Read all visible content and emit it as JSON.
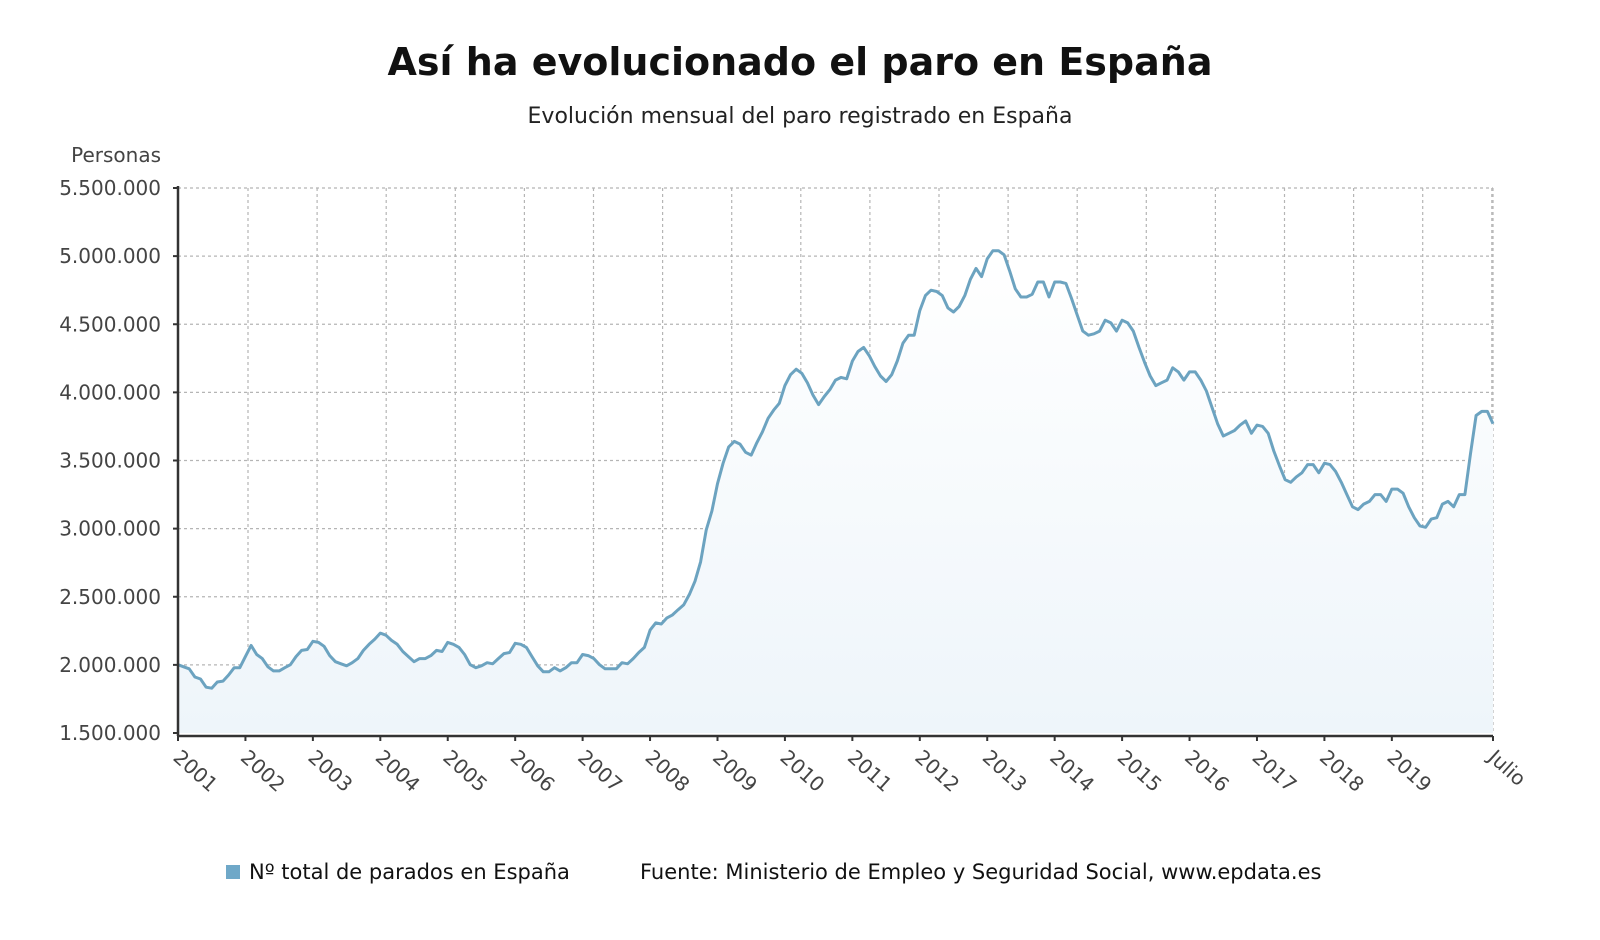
{
  "title": "Así ha evolucionado el paro en España",
  "subtitle": "Evolución mensual del paro registrado en España",
  "legend": {
    "label": "Nº total de parados en España",
    "color": "#6fa8c8"
  },
  "source": "Fuente: Ministerio de Empleo y Seguridad Social, www.epdata.es",
  "chart_data": {
    "type": "area",
    "title": "Así ha evolucionado el paro en España",
    "subtitle": "Evolución mensual del paro registrado en España",
    "ylabel": "Personas",
    "xlabel": "",
    "ylim": [
      1500000,
      5500000
    ],
    "yticks": [
      "1.500.000",
      "2.000.000",
      "2.500.000",
      "3.000.000",
      "3.500.000",
      "4.000.000",
      "4.500.000",
      "5.000.000",
      "5.500.000"
    ],
    "ytick_values": [
      1500000,
      2000000,
      2500000,
      3000000,
      3500000,
      4000000,
      4500000,
      5000000,
      5500000
    ],
    "xticks": [
      "2001",
      "2002",
      "2003",
      "2004",
      "2005",
      "2006",
      "2007",
      "2008",
      "2009",
      "2010",
      "2011",
      "2012",
      "2013",
      "2014",
      "2015",
      "2016",
      "2017",
      "2018",
      "2019",
      "Julio"
    ],
    "x_range": [
      "Enero 2001",
      "Julio 2020"
    ],
    "grid": true,
    "legend_position": "bottom-left",
    "line_color": "#6ca3c0",
    "fill_color": "#eef5fa",
    "series": [
      {
        "name": "Nº total de parados en España",
        "monthly_values_by_year": {
          "2001": [
            2001000,
            1986000,
            1971000,
            1911000,
            1896000,
            1836000,
            1829000,
            1874000,
            1881000,
            1926000,
            1979000,
            1979000
          ],
          "2002": [
            2061000,
            2143000,
            2076000,
            2046000,
            1986000,
            1956000,
            1956000,
            1979000,
            2001000,
            2061000,
            2106000,
            2113000
          ],
          "2003": [
            2173000,
            2165000,
            2136000,
            2068000,
            2023000,
            2008000,
            1993000,
            2016000,
            2046000,
            2106000,
            2151000,
            2188000
          ],
          "2004": [
            2233000,
            2218000,
            2180000,
            2151000,
            2098000,
            2061000,
            2023000,
            2046000,
            2046000,
            2068000,
            2106000,
            2098000
          ],
          "2005": [
            2165000,
            2151000,
            2128000,
            2076000,
            2001000,
            1979000,
            1993000,
            2016000,
            2008000,
            2046000,
            2083000,
            2091000
          ],
          "2006": [
            2158000,
            2151000,
            2128000,
            2061000,
            1993000,
            1949000,
            1949000,
            1979000,
            1956000,
            1979000,
            2016000,
            2016000
          ],
          "2007": [
            2076000,
            2068000,
            2046000,
            2001000,
            1971000,
            1971000,
            1971000,
            2016000,
            2008000,
            2046000,
            2091000,
            2128000
          ],
          "2008": [
            2255000,
            2308000,
            2300000,
            2345000,
            2367000,
            2405000,
            2442000,
            2517000,
            2614000,
            2756000,
            2989000,
            3129000
          ],
          "2009": [
            3330000,
            3480000,
            3600000,
            3640000,
            3620000,
            3560000,
            3540000,
            3630000,
            3710000,
            3810000,
            3870000,
            3920000
          ],
          "2010": [
            4050000,
            4130000,
            4170000,
            4140000,
            4070000,
            3980000,
            3910000,
            3970000,
            4020000,
            4090000,
            4110000,
            4100000
          ],
          "2011": [
            4230000,
            4300000,
            4330000,
            4270000,
            4190000,
            4120000,
            4080000,
            4130000,
            4230000,
            4360000,
            4420000,
            4420000
          ],
          "2012": [
            4600000,
            4710000,
            4750000,
            4740000,
            4710000,
            4620000,
            4590000,
            4630000,
            4710000,
            4830000,
            4910000,
            4850000
          ],
          "2013": [
            4980000,
            5040000,
            5040000,
            5010000,
            4890000,
            4760000,
            4700000,
            4700000,
            4720000,
            4810000,
            4810000,
            4700000
          ],
          "2014": [
            4810000,
            4810000,
            4800000,
            4690000,
            4570000,
            4450000,
            4420000,
            4430000,
            4450000,
            4530000,
            4510000,
            4450000
          ],
          "2015": [
            4530000,
            4510000,
            4450000,
            4330000,
            4220000,
            4120000,
            4050000,
            4070000,
            4090000,
            4180000,
            4150000,
            4090000
          ],
          "2016": [
            4150000,
            4150000,
            4090000,
            4010000,
            3890000,
            3770000,
            3680000,
            3700000,
            3720000,
            3760000,
            3790000,
            3700000
          ],
          "2017": [
            3760000,
            3750000,
            3700000,
            3570000,
            3460000,
            3360000,
            3340000,
            3380000,
            3410000,
            3470000,
            3470000,
            3410000
          ],
          "2018": [
            3480000,
            3470000,
            3420000,
            3340000,
            3250000,
            3160000,
            3140000,
            3180000,
            3200000,
            3250000,
            3250000,
            3200000
          ],
          "2019": [
            3290000,
            3290000,
            3260000,
            3160000,
            3080000,
            3020000,
            3010000,
            3070000,
            3080000,
            3180000,
            3200000,
            3160000
          ],
          "2020": [
            3250000,
            3250000,
            3550000,
            3830000,
            3860000,
            3860000,
            3770000
          ]
        }
      }
    ]
  }
}
